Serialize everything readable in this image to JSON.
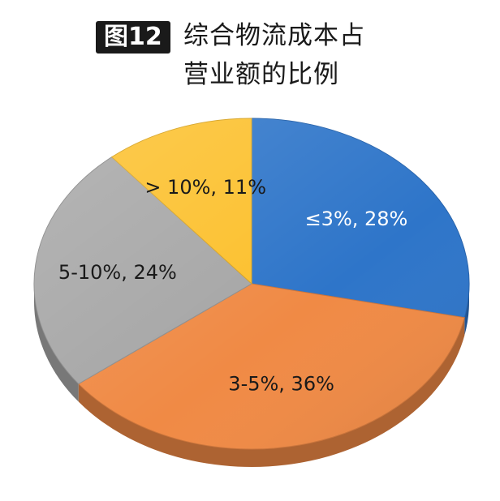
{
  "figure_badge": "图12",
  "title_lines": [
    "综合物流成本占",
    "营业额的比例"
  ],
  "chart_data": {
    "type": "pie",
    "title": "综合物流成本占营业额的比例",
    "slices": [
      {
        "label": "≤3%, 28%",
        "category": "≤3%",
        "value": 28,
        "color": "#2e75c9"
      },
      {
        "label": "3-5%, 36%",
        "category": "3-5%",
        "value": 36,
        "color": "#f08a45"
      },
      {
        "label": "5-10%, 24%",
        "category": "5-10%",
        "value": 24,
        "color": "#a6a6a6"
      },
      {
        "label": "> 10%, 11%",
        "category": "> 10%",
        "value": 11,
        "color": "#fcc02c"
      }
    ],
    "style": "3d-tilted",
    "legend": "none"
  }
}
